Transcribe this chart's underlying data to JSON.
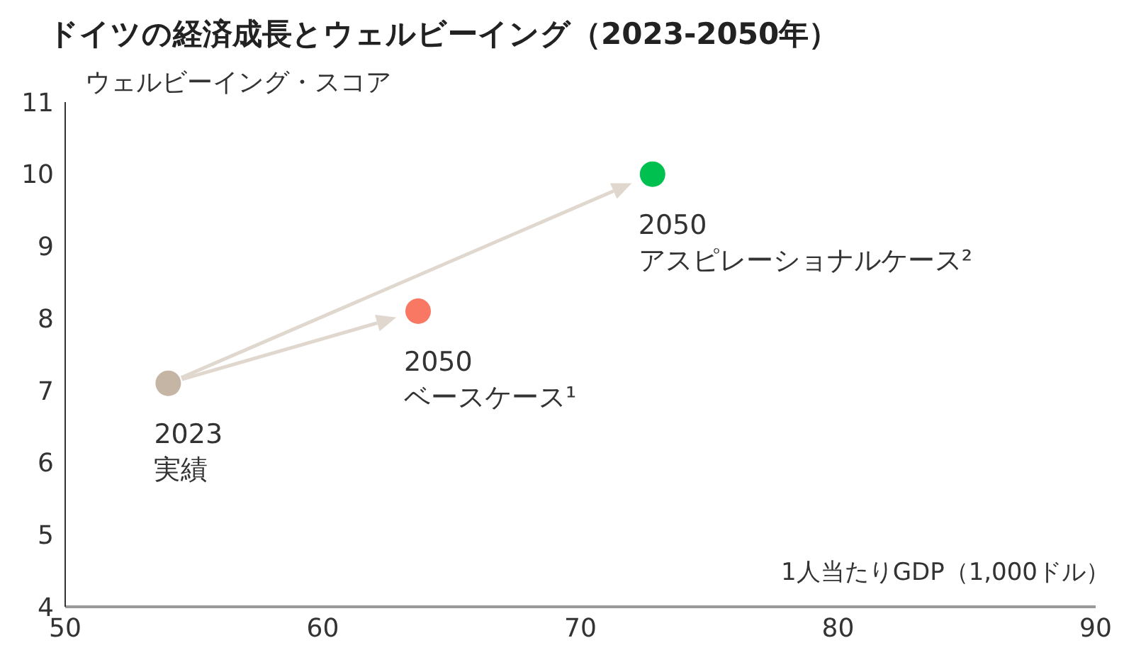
{
  "chart_data": {
    "type": "scatter",
    "title": "ドイツの経済成長とウェルビーイング（2023-2050年）",
    "ylabel": "ウェルビーイング・スコア",
    "xlabel": "1人当たりGDP（1,000ドル）",
    "x": [
      54.0,
      63.7,
      72.8
    ],
    "values": [
      7.1,
      8.1,
      10.0
    ],
    "colors": [
      "#c4b5a5",
      "#f97863",
      "#00c04f"
    ],
    "marker": "circle",
    "grid": false,
    "legend": false,
    "xlim": [
      50,
      90
    ],
    "xticks": [
      50,
      60,
      70,
      80,
      90
    ],
    "ylim": [
      4,
      11
    ],
    "yticks": [
      4,
      5,
      6,
      7,
      8,
      9,
      10,
      11
    ],
    "annotations": [
      {
        "text": "2023\n実績",
        "x": 54.0,
        "y": 7.1
      },
      {
        "text": "2050\nベースケース¹",
        "x": 63.7,
        "y": 8.1
      },
      {
        "text": "2050\nアスピレーショナルケース²",
        "x": 72.8,
        "y": 10.0
      }
    ]
  }
}
